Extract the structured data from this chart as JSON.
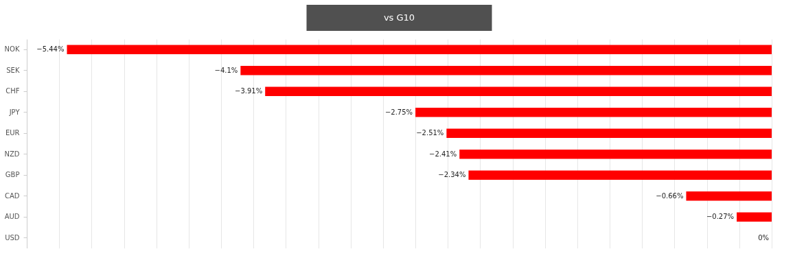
{
  "chart_data": {
    "type": "bar",
    "orientation": "horizontal",
    "title": "vs G10",
    "categories": [
      "NOK",
      "SEK",
      "CHF",
      "JPY",
      "EUR",
      "NZD",
      "GBP",
      "CAD",
      "AUD",
      "USD"
    ],
    "values": [
      -5.44,
      -4.1,
      -3.91,
      -2.75,
      -2.51,
      -2.41,
      -2.34,
      -0.66,
      -0.27,
      0
    ],
    "value_labels": [
      "−5.44%",
      "−4.1%",
      "−3.91%",
      "−2.75%",
      "−2.51%",
      "−2.41%",
      "−2.34%",
      "−0.66%",
      "−0.27%",
      "0%"
    ],
    "color": "#ff0000",
    "xlim": [
      -5.75,
      0
    ],
    "xticks": [
      {
        "value": -5.5,
        "label": null
      },
      {
        "value": -5.25,
        "label": null
      },
      {
        "value": -5,
        "label": null
      },
      {
        "value": -4.75,
        "label": null
      },
      {
        "value": -4.5,
        "label": null
      },
      {
        "value": -4.25,
        "label": null
      },
      {
        "value": -4,
        "label": null
      },
      {
        "value": -3.75,
        "label": null
      },
      {
        "value": -3.5,
        "label": null
      },
      {
        "value": -3.25,
        "label": null
      },
      {
        "value": -3,
        "label": null
      },
      {
        "value": -2.75,
        "label": null
      },
      {
        "value": -2.5,
        "label": null
      },
      {
        "value": -2.25,
        "label": null
      },
      {
        "value": -2,
        "label": null
      },
      {
        "value": -1.75,
        "label": null
      },
      {
        "value": -1.5,
        "label": null
      },
      {
        "value": -1.25,
        "label": null
      },
      {
        "value": -1,
        "label": null
      },
      {
        "value": -0.75,
        "label": null
      },
      {
        "value": -0.5,
        "label": null
      },
      {
        "value": -0.25,
        "label": null
      },
      {
        "value": 0,
        "label": null
      }
    ],
    "tick_labels": "y",
    "grid": "x"
  }
}
